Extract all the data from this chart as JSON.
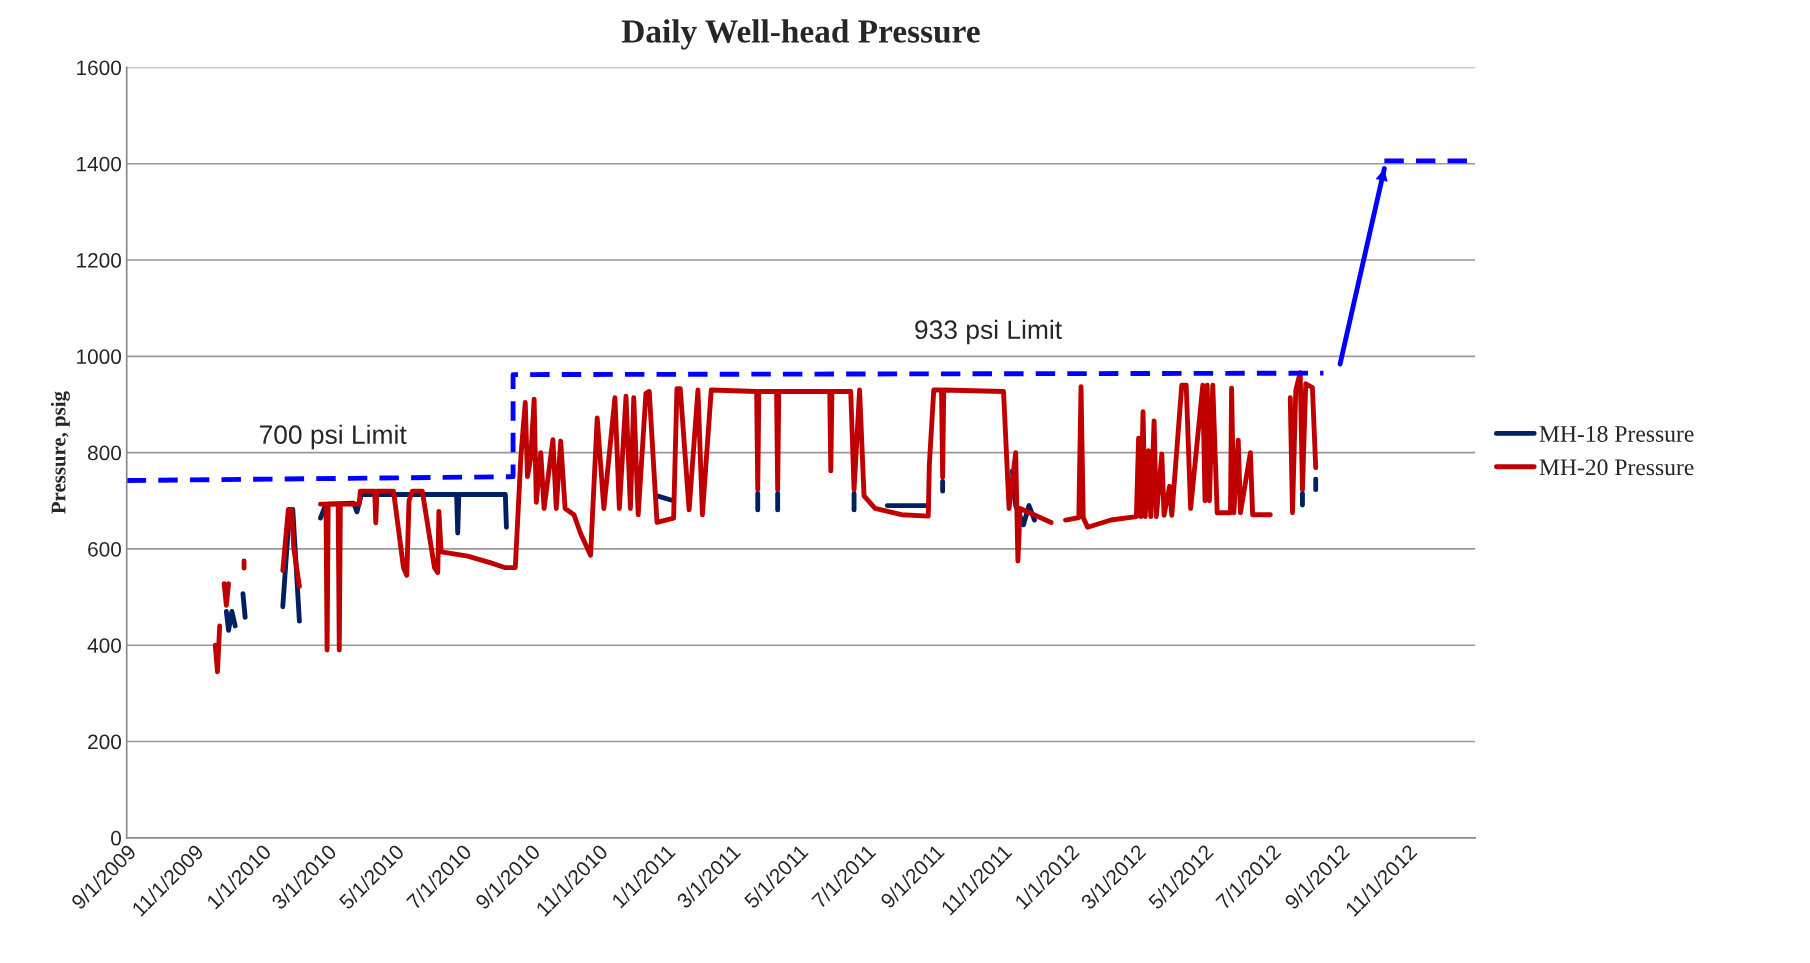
{
  "chart_data": {
    "type": "line",
    "title": "Daily Well-head Pressure",
    "ylabel": "Pressure, psig",
    "xlim": [
      "2009-09-01",
      "2013-01-01"
    ],
    "xticks": [
      {
        "value": "2009-09-01",
        "label": "9/1/2009"
      },
      {
        "value": "2009-11-01",
        "label": "11/1/2009"
      },
      {
        "value": "2010-01-01",
        "label": "1/1/2010"
      },
      {
        "value": "2010-03-01",
        "label": "3/1/2010"
      },
      {
        "value": "2010-05-01",
        "label": "5/1/2010"
      },
      {
        "value": "2010-07-01",
        "label": "7/1/2010"
      },
      {
        "value": "2010-09-01",
        "label": "9/1/2010"
      },
      {
        "value": "2010-11-01",
        "label": "11/1/2010"
      },
      {
        "value": "2011-01-01",
        "label": "1/1/2011"
      },
      {
        "value": "2011-03-01",
        "label": "3/1/2011"
      },
      {
        "value": "2011-05-01",
        "label": "5/1/2011"
      },
      {
        "value": "2011-07-01",
        "label": "7/1/2011"
      },
      {
        "value": "2011-09-01",
        "label": "9/1/2011"
      },
      {
        "value": "2011-11-01",
        "label": "11/1/2011"
      },
      {
        "value": "2012-01-01",
        "label": "1/1/2012"
      },
      {
        "value": "2012-03-01",
        "label": "3/1/2012"
      },
      {
        "value": "2012-05-01",
        "label": "5/1/2012"
      },
      {
        "value": "2012-07-01",
        "label": "7/1/2012"
      },
      {
        "value": "2012-09-01",
        "label": "9/1/2012"
      },
      {
        "value": "2012-11-01",
        "label": "11/1/2012"
      }
    ],
    "ylim": [
      0,
      1600
    ],
    "yticks": [
      0,
      200,
      400,
      600,
      800,
      1000,
      1200,
      1400,
      1600
    ],
    "grid": "y",
    "legend": "right",
    "marker": "none",
    "line_style": "solid",
    "series": [
      {
        "name": "MH-18 Pressure",
        "color": "#002060",
        "x": [
          "2009-11-30",
          "2009-12-02",
          "2009-12-05",
          "2009-12-08",
          "2009-12-11",
          "2009-12-15",
          "2009-12-17",
          "2009-12-20",
          "2010-01-20",
          "2010-01-25",
          "2010-01-29",
          "2010-02-04",
          "2010-02-08",
          "2010-02-23",
          "2010-02-28",
          "2010-03-25",
          "2010-03-28",
          "2010-04-01",
          "2010-06-26",
          "2010-06-27",
          "2010-06-28",
          "2010-08-09",
          "2010-08-10",
          "2010-08-13",
          "2010-12-24",
          "2011-01-08",
          "2011-01-10",
          "2011-03-25",
          "2011-03-25",
          "2011-03-27",
          "2011-04-12",
          "2011-04-12",
          "2011-04-14",
          "2011-06-20",
          "2011-06-20",
          "2011-06-22",
          "2011-07-20",
          "2011-08-26",
          "2011-08-28",
          "2011-09-08",
          "2011-09-08",
          "2011-09-10",
          "2011-11-10",
          "2011-11-13",
          "2011-11-20",
          "2011-11-25",
          "2011-11-30",
          "2011-12-03",
          "2012-07-29",
          "2012-07-29",
          "2012-07-31",
          "2012-08-10",
          "2012-08-10"
        ],
        "values": [
          470,
          431,
          470,
          440,
          null,
          507,
          458,
          null,
          480,
          645,
          682,
          450,
          null,
          664,
          693,
          695,
          677,
          713,
          713,
          633,
          713,
          713,
          645,
          null,
          710,
          700,
          null,
          715,
          681,
          null,
          715,
          681,
          null,
          715,
          681,
          null,
          690,
          690,
          null,
          740,
          720,
          null,
          762,
          690,
          650,
          690,
          660,
          null,
          715,
          691,
          null,
          745,
          723
        ]
      },
      {
        "name": "MH-20 Pressure",
        "color": "#c00000",
        "x": [
          "2009-11-20",
          "2009-11-22",
          "2009-11-24",
          "2009-11-26",
          "2009-11-28",
          "2009-11-30",
          "2009-12-02",
          "2009-12-04",
          "2009-12-16",
          "2009-12-16",
          "2009-12-20",
          "2010-01-20",
          "2010-01-25",
          "2010-01-28",
          "2010-01-30",
          "2010-02-04",
          "2010-02-08",
          "2010-02-23",
          "2010-02-28",
          "2010-03-01",
          "2010-03-02",
          "2010-03-11",
          "2010-03-12",
          "2010-03-13",
          "2010-03-30",
          "2010-03-31",
          "2010-04-13",
          "2010-04-14",
          "2010-04-15",
          "2010-04-30",
          "2010-05-09",
          "2010-05-12",
          "2010-05-14",
          "2010-05-17",
          "2010-05-26",
          "2010-06-06",
          "2010-06-09",
          "2010-06-10",
          "2010-06-12",
          "2010-07-06",
          "2010-07-27",
          "2010-08-09",
          "2010-08-18",
          "2010-08-23",
          "2010-08-27",
          "2010-08-29",
          "2010-09-01",
          "2010-09-04",
          "2010-09-06",
          "2010-09-10",
          "2010-09-13",
          "2010-09-21",
          "2010-09-24",
          "2010-09-28",
          "2010-10-02",
          "2010-10-10",
          "2010-10-16",
          "2010-10-25",
          "2010-10-31",
          "2010-11-06",
          "2010-11-16",
          "2010-11-20",
          "2010-11-26",
          "2010-11-30",
          "2010-12-03",
          "2010-12-07",
          "2010-12-14",
          "2010-12-17",
          "2010-12-24",
          "2011-01-08",
          "2011-01-11",
          "2011-01-14",
          "2011-01-22",
          "2011-01-30",
          "2011-02-03",
          "2011-02-11",
          "2011-03-24",
          "2011-03-25",
          "2011-03-26",
          "2011-04-11",
          "2011-04-12",
          "2011-04-13",
          "2011-05-29",
          "2011-05-30",
          "2011-05-31",
          "2011-06-17",
          "2011-06-20",
          "2011-06-25",
          "2011-06-29",
          "2011-07-09",
          "2011-08-02",
          "2011-08-26",
          "2011-08-27",
          "2011-08-31",
          "2011-09-07",
          "2011-09-08",
          "2011-09-09",
          "2011-11-02",
          "2011-11-07",
          "2011-11-13",
          "2011-11-15",
          "2011-11-17",
          "2011-12-15",
          "2011-12-20",
          "2011-12-28",
          "2012-01-09",
          "2012-01-11",
          "2012-01-13",
          "2012-01-17",
          "2012-02-07",
          "2012-03-01",
          "2012-03-03",
          "2012-03-05",
          "2012-03-07",
          "2012-03-09",
          "2012-03-12",
          "2012-03-14",
          "2012-03-17",
          "2012-03-19",
          "2012-03-24",
          "2012-03-26",
          "2012-03-31",
          "2012-04-02",
          "2012-04-11",
          "2012-04-15",
          "2012-04-19",
          "2012-04-30",
          "2012-05-02",
          "2012-05-04",
          "2012-05-06",
          "2012-05-09",
          "2012-05-13",
          "2012-05-25",
          "2012-05-26",
          "2012-05-28",
          "2012-06-01",
          "2012-06-03",
          "2012-06-12",
          "2012-06-14",
          "2012-06-30",
          "2012-07-12",
          "2012-07-18",
          "2012-07-20",
          "2012-07-23",
          "2012-07-27",
          "2012-07-29",
          "2012-08-01",
          "2012-08-07",
          "2012-08-10"
        ],
        "values": [
          400,
          345,
          440,
          null,
          528,
          483,
          528,
          null,
          575,
          560,
          null,
          555,
          682,
          682,
          600,
          522,
          null,
          693,
          693,
          390,
          693,
          693,
          390,
          693,
          693,
          720,
          720,
          654,
          720,
          720,
          561,
          545,
          700,
          720,
          720,
          561,
          551,
          678,
          594,
          585,
          571,
          561,
          561,
          790,
          904,
          750,
          790,
          911,
          697,
          800,
          684,
          827,
          684,
          824,
          684,
          671,
          632,
          587,
          872,
          684,
          914,
          684,
          917,
          684,
          914,
          671,
          923,
          927,
          655,
          664,
          933,
          933,
          681,
          930,
          671,
          930,
          927,
          723,
          927,
          927,
          723,
          927,
          927,
          762,
          927,
          927,
          723,
          930,
          710,
          684,
          671,
          668,
          775,
          930,
          930,
          749,
          930,
          927,
          684,
          800,
          575,
          684,
          655,
          null,
          660,
          665,
          937,
          665,
          645,
          660,
          667,
          830,
          667,
          885,
          667,
          804,
          667,
          866,
          667,
          797,
          670,
          730,
          670,
          940,
          940,
          684,
          940,
          700,
          940,
          700,
          940,
          675,
          675,
          934,
          675,
          826,
          675,
          800,
          671,
          671,
          null,
          914,
          675,
          930,
          966,
          723,
          943,
          935,
          769
        ]
      },
      {
        "color": "#0000ff",
        "line_style": "dashed",
        "x": [
          "2009-09-01",
          "2010-08-16",
          "2010-08-16",
          "2012-08-17",
          "2012-09-15",
          "2012-10-11",
          "2013-01-01"
        ],
        "values": [
          742,
          750,
          962,
          965,
          null,
          1406,
          1406
        ]
      },
      {
        "color": "#0000ff",
        "line_style": "solid",
        "x": [
          "2012-09-01",
          "2012-10-11"
        ],
        "values": [
          984,
          1390
        ]
      }
    ],
    "annotations": [
      {
        "text": "700 psi Limit",
        "x": "2010-03-06",
        "y": 746
      },
      {
        "text": "933 psi Limit",
        "x": "2011-10-19",
        "y": 964
      }
    ]
  }
}
